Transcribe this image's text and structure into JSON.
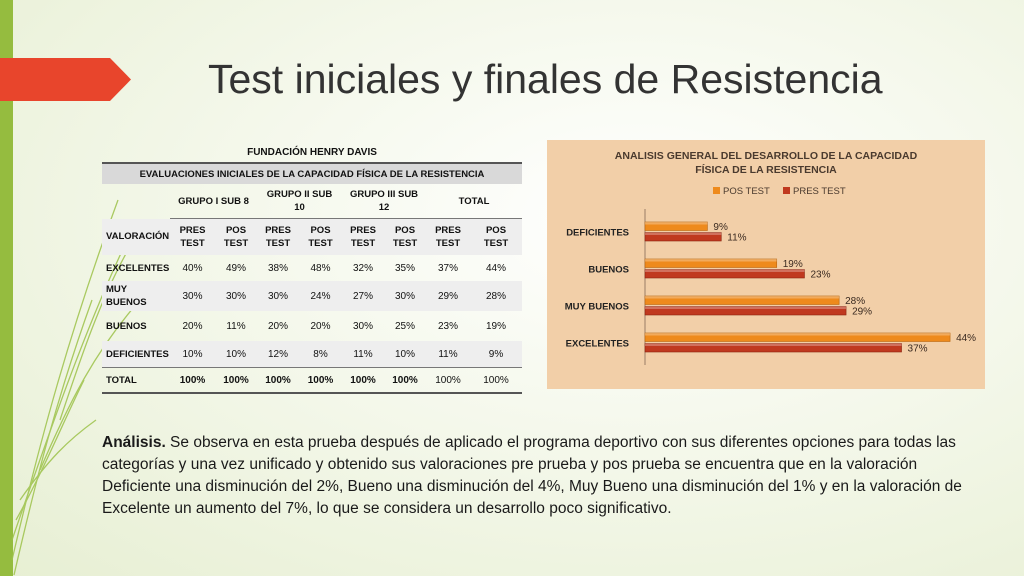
{
  "slide": {
    "title": "Test iniciales y finales de Resistencia"
  },
  "table": {
    "banner": "FUNDACIÓN HENRY DAVIS",
    "subtitle": "EVALUACIONES INICIALES DE LA CAPACIDAD FÍSICA DE LA RESISTENCIA",
    "groups": [
      "GRUPO I SUB 8",
      "GRUPO II SUB 10",
      "GRUPO III SUB 12",
      "TOTAL"
    ],
    "valoracion_label": "VALORACIÓN",
    "col_heads": [
      "PRES TEST",
      "POS TEST",
      "PRES TEST",
      "POS TEST",
      "PRES TEST",
      "POS TEST",
      "PRES TEST",
      "POS TEST"
    ],
    "rows": [
      {
        "label": "EXCELENTES",
        "values": [
          "40%",
          "49%",
          "38%",
          "48%",
          "32%",
          "35%",
          "37%",
          "44%"
        ]
      },
      {
        "label": "MUY BUENOS",
        "values": [
          "30%",
          "30%",
          "30%",
          "24%",
          "27%",
          "30%",
          "29%",
          "28%"
        ]
      },
      {
        "label": "BUENOS",
        "values": [
          "20%",
          "11%",
          "20%",
          "20%",
          "30%",
          "25%",
          "23%",
          "19%"
        ]
      },
      {
        "label": "DEFICIENTES",
        "values": [
          "10%",
          "10%",
          "12%",
          "8%",
          "11%",
          "10%",
          "11%",
          "9%"
        ]
      }
    ],
    "total": {
      "label": "TOTAL",
      "values": [
        "100%",
        "100%",
        "100%",
        "100%",
        "100%",
        "100%",
        "100%",
        "100%"
      ]
    }
  },
  "chart_data": {
    "type": "bar",
    "orientation": "horizontal",
    "title": "ANALISIS GENERAL DEL DESARROLLO DE LA CAPACIDAD FÍSICA DE LA  RESISTENCIA",
    "title_lines": [
      "ANALISIS GENERAL DEL DESARROLLO DE LA CAPACIDAD",
      "FÍSICA DE LA  RESISTENCIA"
    ],
    "categories": [
      "DEFICIENTES",
      "BUENOS",
      "MUY BUENOS",
      "EXCELENTES"
    ],
    "series": [
      {
        "name": "POS TEST",
        "values": [
          9,
          19,
          28,
          44
        ],
        "labels": [
          "9%",
          "19%",
          "28%",
          "44%"
        ],
        "color": "#ee8a1c"
      },
      {
        "name": "PRES TEST",
        "values": [
          11,
          23,
          29,
          37
        ],
        "labels": [
          "11%",
          "23%",
          "29%",
          "37%"
        ],
        "color": "#c0391f"
      }
    ],
    "xlim": [
      0,
      45
    ],
    "legend": "top-center",
    "grid": false
  },
  "analysis": {
    "label": "Análisis.",
    "text": " Se observa en esta prueba después de aplicado el programa deportivo con sus diferentes opciones para todas las categorías y una vez unificado y obtenido sus valoraciones pre prueba y pos prueba se encuentra que en la valoración Deficiente una disminución del 2%, Bueno una disminución del 4%, Muy Bueno una disminución del 1% y en la valoración de Excelente  un aumento del 7%, lo que se considera un desarrollo poco significativo."
  },
  "colors": {
    "accent_green": "#95bc3f",
    "banner_red": "#e8452c",
    "chart_bg": "#f2cfa8"
  }
}
